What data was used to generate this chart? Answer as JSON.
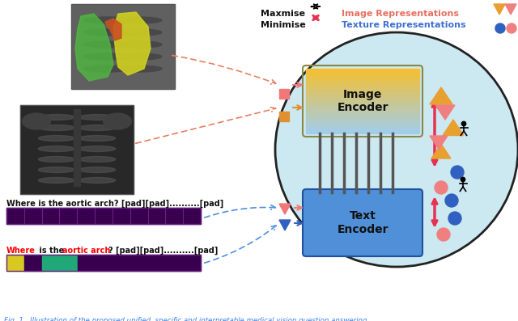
{
  "caption": "Fig. 1.  Illustration of the proposed unified, specific and interpretable medical vision question answering",
  "legend_maxmise": "Maxmise",
  "legend_minimise": "Minimise",
  "legend_image_repr": "Image Representations",
  "legend_texture_repr": "Texture Representations",
  "image_encoder_label": "Image\nEncoder",
  "text_encoder_label": "Text\nEncoder",
  "q1": "Where is the aortic arch? [pad][pad]..........[pad]",
  "q2_where": "Where",
  "q2_black": " is the ",
  "q2_red": "aortic arch",
  "q2_rest": "? [pad][pad]..........[pad]",
  "ellipse_color": "#cce8f0",
  "ellipse_edge": "#222222",
  "img_enc_top": "#f5c030",
  "img_enc_bot": "#a8cef0",
  "txt_enc_fill": "#5090d8",
  "bar_purple": "#3a0050",
  "bar_yellow": "#d8c820",
  "bar_teal": "#20a878",
  "pink_sq": "#f07878",
  "orange_sq": "#e09030",
  "pink_tri": "#f07878",
  "blue_tri": "#3060c0",
  "arrow_red": "#e83050",
  "arrow_dashed_salmon": "#e88060",
  "arrow_dashed_blue": "#5090e0",
  "orange_repr": "#e8a030",
  "pink_repr": "#f08080",
  "blue_repr": "#3060c0"
}
